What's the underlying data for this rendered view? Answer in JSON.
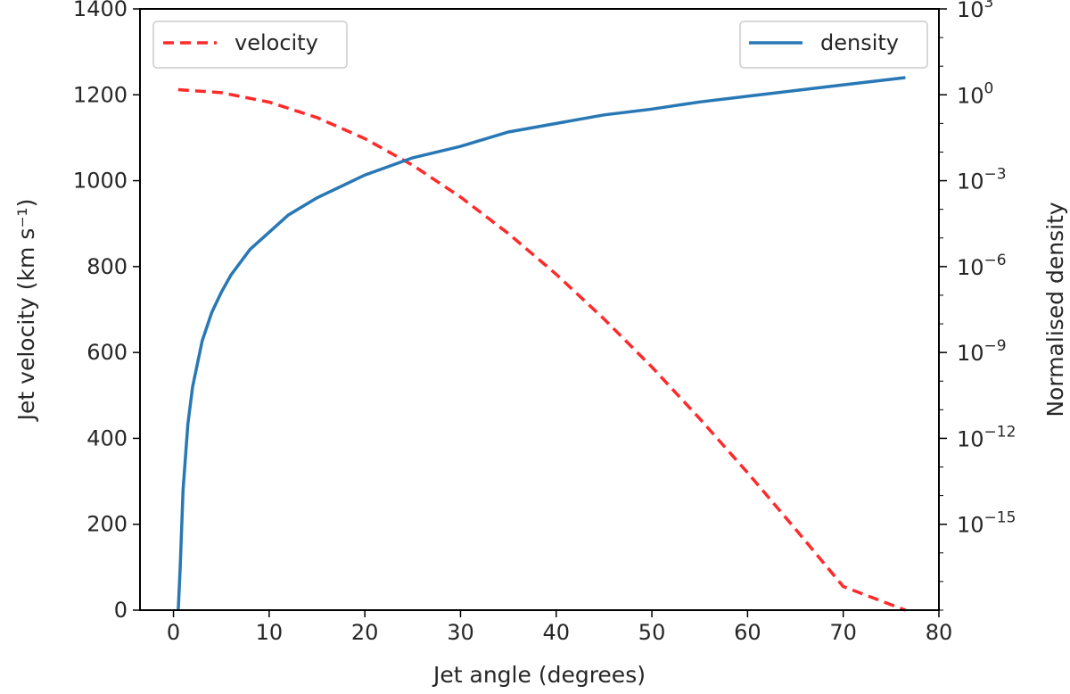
{
  "chart_data": {
    "type": "line",
    "title": "",
    "xlabel": "Jet angle (degrees)",
    "ylabel": "Jet velocity (km s⁻¹)",
    "ylabel_right": "Normalised density",
    "xlim": [
      -3.5,
      80
    ],
    "ylim": [
      0,
      1400
    ],
    "ylim_right_log10": [
      -18,
      3
    ],
    "x_ticks": [
      0,
      10,
      20,
      30,
      40,
      50,
      60,
      70,
      80
    ],
    "y_ticks": [
      0,
      200,
      400,
      600,
      800,
      1000,
      1200,
      1400
    ],
    "y_right_ticks": [
      {
        "base": "10",
        "exp": "3",
        "log": 3
      },
      {
        "base": "10",
        "exp": "0",
        "log": 0
      },
      {
        "base": "10",
        "exp": "−3",
        "log": -3
      },
      {
        "base": "10",
        "exp": "−6",
        "log": -6
      },
      {
        "base": "10",
        "exp": "−9",
        "log": -9
      },
      {
        "base": "10",
        "exp": "−12",
        "log": -12
      },
      {
        "base": "10",
        "exp": "−15",
        "log": -15
      }
    ],
    "series": [
      {
        "name": "velocity",
        "axis": "left",
        "color": "#ff2a2a",
        "style": "dashed",
        "x": [
          0.5,
          5,
          10,
          15,
          20,
          25,
          30,
          35,
          40,
          45,
          50,
          55,
          60,
          65,
          70,
          76.5
        ],
        "y": [
          1212,
          1205,
          1183,
          1147,
          1098,
          1036,
          962,
          877,
          782,
          678,
          566,
          446,
          320,
          189,
          55,
          0
        ]
      },
      {
        "name": "density",
        "axis": "right",
        "scale": "log",
        "color": "#2878b5",
        "style": "solid",
        "x": [
          0.5,
          0.7,
          1,
          1.5,
          2,
          3,
          4,
          5,
          6,
          8,
          10,
          12,
          15,
          20,
          25,
          30,
          35,
          40,
          45,
          50,
          55,
          60,
          65,
          70,
          76.5
        ],
        "y_log10": [
          -18,
          -16.5,
          -13.8,
          -11.5,
          -10.2,
          -8.6,
          -7.6,
          -6.9,
          -6.3,
          -5.4,
          -4.8,
          -4.2,
          -3.6,
          -2.8,
          -2.2,
          -1.8,
          -1.3,
          -1.0,
          -0.7,
          -0.5,
          -0.25,
          -0.05,
          0.15,
          0.35,
          0.6
        ]
      }
    ],
    "legends": [
      {
        "label": "velocity",
        "placement": "upper left"
      },
      {
        "label": "density",
        "placement": "upper right"
      }
    ]
  }
}
